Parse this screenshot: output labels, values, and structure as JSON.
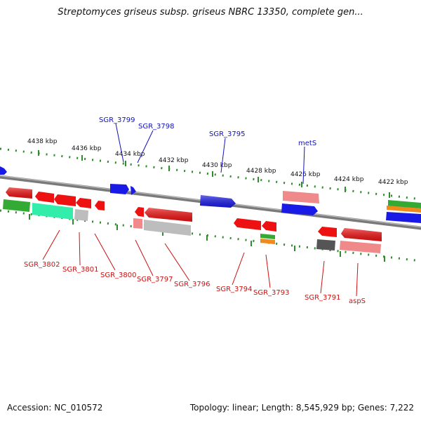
{
  "title": "Streptomyces griseus subsp. griseus NBRC 13350, complete gen...",
  "footer": {
    "accession": "Accession: NC_010572",
    "topology": "Topology: linear; Length: 8,545,929 bp; Genes: 7,222"
  },
  "colors": {
    "backbone": "#808080",
    "scale_dots": "#2e8b2e",
    "forward_label": "#1010c0",
    "reverse_label": "#cc1010",
    "red_gene": "#ee1111",
    "blue_gene": "#1a1ae6",
    "green_gene": "#33aa33",
    "mint_gene": "#33eeaa",
    "pink_gene": "#f08a8a",
    "grey_gene": "#bdbdbd",
    "dark_gene": "#555555",
    "orange_gene": "#f08a1a"
  },
  "scale_labels": [
    "4438 kbp",
    "4436 kbp",
    "4434 kbp",
    "4432 kbp",
    "4430 kbp",
    "4428 kbp",
    "4426 kbp",
    "4424 kbp",
    "4422 kbp"
  ],
  "forward_genes": [
    "SGR_3799",
    "SGR_3798",
    "SGR_3795",
    "metS"
  ],
  "reverse_genes": [
    "SGR_3802",
    "SGR_3801",
    "SGR_3800",
    "SGR_3797",
    "SGR_3796",
    "SGR_3794",
    "SGR_3793",
    "SGR_3791",
    "aspS"
  ]
}
